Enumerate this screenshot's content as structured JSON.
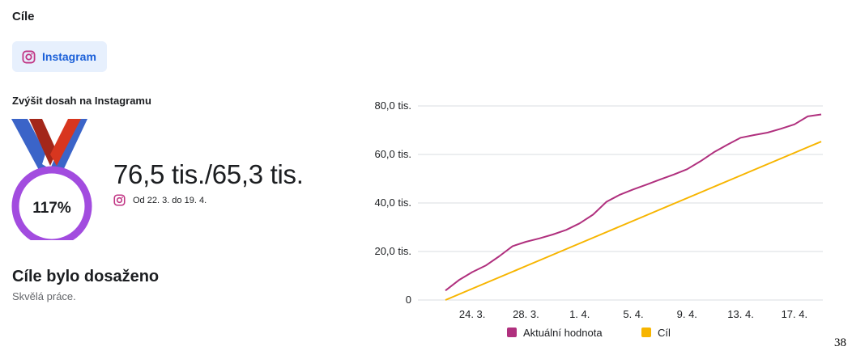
{
  "header": {
    "title": "Cíle"
  },
  "platform_chip": {
    "label": "Instagram",
    "icon": "instagram-icon",
    "color": "#1a5fd8"
  },
  "goal": {
    "name": "Zvýšit dosah na Instagramu",
    "percent": "117%",
    "value_text": "76,5 tis./65,3 tis.",
    "date_range": "Od 22. 3. do 19. 4.",
    "status_title": "Cíle bylo dosaženo",
    "status_subtitle": "Skvělá práce."
  },
  "medal": {
    "icon": "medal-icon",
    "ring_color": "#a24cdf",
    "ribbon_colors": [
      "#3b64c8",
      "#ffffff",
      "#d8361f"
    ]
  },
  "page_number": "38",
  "chart_data": {
    "type": "line",
    "x": [
      "22. 3.",
      "23. 3.",
      "24. 3.",
      "25. 3.",
      "26. 3.",
      "27. 3.",
      "28. 3.",
      "29. 3.",
      "30. 3.",
      "31. 3.",
      "1. 4.",
      "2. 4.",
      "3. 4.",
      "4. 4.",
      "5. 4.",
      "6. 4.",
      "7. 4.",
      "8. 4.",
      "9. 4.",
      "10. 4.",
      "11. 4.",
      "12. 4.",
      "13. 4.",
      "14. 4.",
      "15. 4.",
      "16. 4.",
      "17. 4.",
      "18. 4.",
      "19. 4."
    ],
    "xticks": [
      "24. 3.",
      "28. 3.",
      "1. 4.",
      "5. 4.",
      "9. 4.",
      "13. 4.",
      "17. 4."
    ],
    "yticks": [
      0,
      20000,
      40000,
      60000,
      80000
    ],
    "ytick_labels": [
      "0",
      "20,0 tis.",
      "40,0 tis.",
      "60,0 tis.",
      "80,0 tis."
    ],
    "ylim": [
      0,
      80000
    ],
    "grid": true,
    "legend_position": "bottom",
    "series": [
      {
        "name": "Aktuální hodnota",
        "color": "#b0307e",
        "values": [
          3900,
          8200,
          11500,
          14200,
          18000,
          22200,
          24000,
          25400,
          27000,
          28900,
          31600,
          35200,
          40500,
          43400,
          45600,
          47600,
          49700,
          51700,
          53900,
          57200,
          60900,
          64000,
          66900,
          68000,
          69000,
          70600,
          72400,
          75700,
          76500
        ]
      },
      {
        "name": "Cíl",
        "color": "#f7b500",
        "values": [
          0,
          2330,
          4660,
          7000,
          9330,
          11660,
          14000,
          16330,
          18660,
          21000,
          23330,
          25660,
          28000,
          30330,
          32660,
          35000,
          37330,
          39660,
          42000,
          44330,
          46660,
          49000,
          51330,
          53660,
          56000,
          58330,
          60660,
          63000,
          65300
        ]
      }
    ]
  }
}
